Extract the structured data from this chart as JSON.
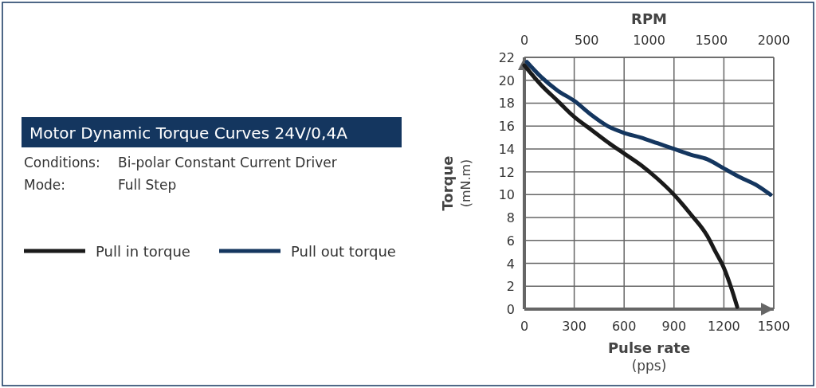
{
  "chart_data": {
    "type": "line",
    "title": "Motor Dynamic Torque Curves 24V/0,4A",
    "annotations": [
      "Conditions:",
      "Bi-polar Constant Current Driver",
      "Mode:",
      "Full Step"
    ],
    "xlabel": "Pulse rate (pps)",
    "ylabel": "Torque (mN.m)",
    "x2label": "RPM",
    "xlim": [
      0,
      1500
    ],
    "xticks": [
      0,
      300,
      600,
      900,
      1200,
      1500
    ],
    "x2lim": [
      0,
      2000
    ],
    "x2ticks": [
      0,
      500,
      1000,
      1500,
      2000
    ],
    "ylim": [
      0,
      22
    ],
    "yticks": [
      0,
      2,
      4,
      6,
      8,
      10,
      12,
      14,
      16,
      18,
      20,
      22
    ],
    "grid": true,
    "legend": "left",
    "marker": "none",
    "line_style": "solid",
    "series": [
      {
        "name": "Pull in torque",
        "color": "#1a1a1a",
        "x": [
          0,
          100,
          200,
          300,
          400,
          500,
          600,
          700,
          800,
          900,
          1000,
          1100,
          1150,
          1200,
          1250,
          1280
        ],
        "values": [
          21.3,
          19.6,
          18.2,
          16.8,
          15.7,
          14.6,
          13.6,
          12.6,
          11.4,
          10.0,
          8.3,
          6.4,
          5.0,
          3.6,
          1.6,
          0.2
        ]
      },
      {
        "name": "Pull out torque",
        "color": "#14365f",
        "x": [
          15,
          100,
          200,
          300,
          400,
          500,
          600,
          700,
          800,
          900,
          1000,
          1100,
          1200,
          1300,
          1400,
          1480
        ],
        "values": [
          21.6,
          20.3,
          19.1,
          18.2,
          17.0,
          16.0,
          15.4,
          15.0,
          14.5,
          14.0,
          13.5,
          13.1,
          12.3,
          11.5,
          10.8,
          10.0
        ]
      }
    ]
  }
}
